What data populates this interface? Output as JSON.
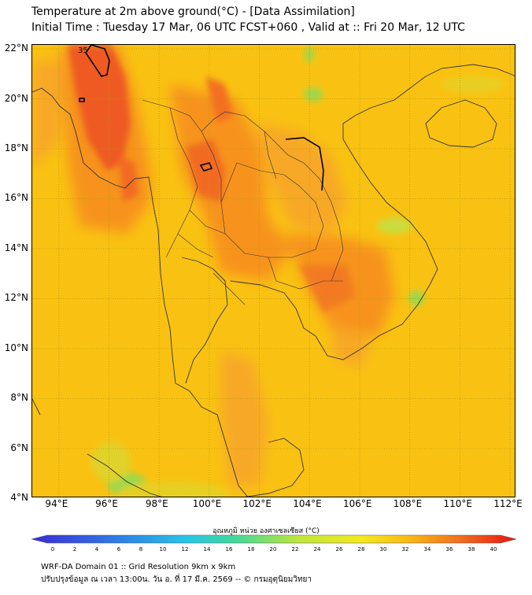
{
  "title": {
    "line1": "Temperature at 2m above ground(°C) - [Data Assimilation]",
    "line2": "Initial Time : Tuesday 17 Mar, 06 UTC FCST+060 , Valid at :: Fri 20 Mar, 12 UTC"
  },
  "map": {
    "lat_labels": [
      "22°N",
      "20°N",
      "18°N",
      "16°N",
      "14°N",
      "12°N",
      "10°N",
      "8°N",
      "6°N",
      "4°N"
    ],
    "lon_labels": [
      "94°E",
      "96°E",
      "98°E",
      "100°E",
      "102°E",
      "104°E",
      "106°E",
      "108°E",
      "110°E",
      "112°E"
    ],
    "lat_range": [
      4,
      22
    ],
    "lon_range": [
      93,
      112.3
    ],
    "contour_label": "35",
    "colors": {
      "base": "#f9c212",
      "warm": "#f7931e",
      "hot": "#ee5a24",
      "cool": "#c9dd3c",
      "cold": "#7fd35a"
    }
  },
  "colorbar": {
    "title": "อุณหภูมิ หน่วย องศาเซลเซียส (°C)",
    "ticks": [
      "0",
      "2",
      "4",
      "6",
      "8",
      "10",
      "12",
      "14",
      "16",
      "18",
      "20",
      "22",
      "24",
      "26",
      "28",
      "30",
      "32",
      "34",
      "36",
      "38",
      "40"
    ],
    "min": 0,
    "max": 40
  },
  "footer": {
    "line1": "WRF-DA Domain 01 :: Grid Resolution 9km x 9km",
    "line2": "ปรับปรุงข้อมูล ณ เวลา 13:00น. วัน อ. ที่ 17 มี.ค. 2569 -- © กรมอุตุนิยมวิทยา"
  }
}
